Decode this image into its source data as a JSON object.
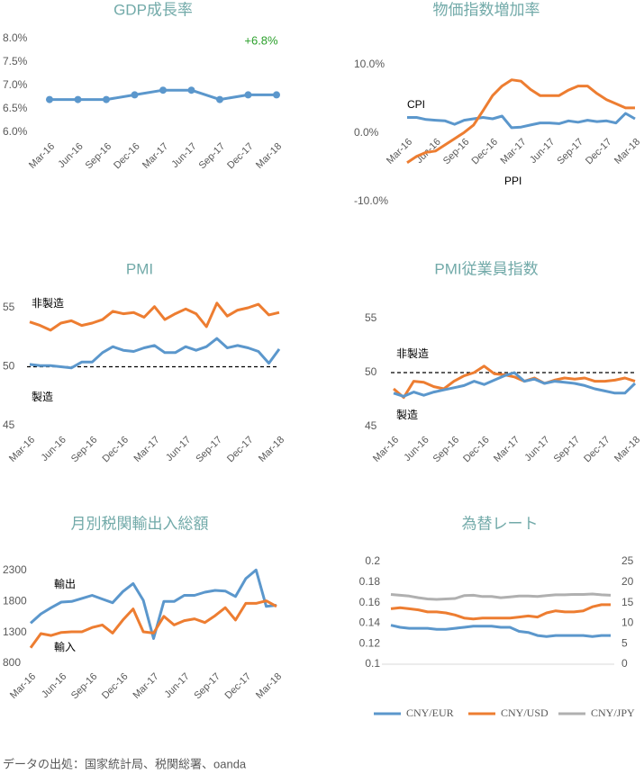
{
  "chart_data": [
    {
      "type": "line",
      "title": "GDP成長率",
      "categories": [
        "Mar-16",
        "Jun-16",
        "Sep-16",
        "Dec-16",
        "Mar-17",
        "Jun-17",
        "Sep-17",
        "Dec-17",
        "Mar-18"
      ],
      "series": [
        {
          "name": null,
          "color": "#5b97cc",
          "values": [
            6.7,
            6.7,
            6.7,
            6.8,
            6.9,
            6.9,
            6.7,
            6.8,
            6.8
          ]
        }
      ],
      "markers": true,
      "annotation": "+6.8%",
      "annotation_color": "#2ca02c",
      "ylim": [
        6.0,
        8.0
      ],
      "yticks": [
        {
          "value": 6.0,
          "label": "6.0%"
        },
        {
          "value": 6.5,
          "label": "6.5%"
        },
        {
          "value": 7.0,
          "label": "7.0%"
        },
        {
          "value": 7.5,
          "label": "7.5%"
        },
        {
          "value": 8.0,
          "label": "8.0%"
        }
      ]
    },
    {
      "type": "line",
      "title": "物価指数増加率",
      "categories": [
        "Mar-16",
        null,
        null,
        "Jun-16",
        null,
        null,
        "Sep-16",
        null,
        null,
        "Dec-16",
        null,
        null,
        "Mar-17",
        null,
        null,
        "Jun-17",
        null,
        null,
        "Sep-17",
        null,
        null,
        "Dec-17",
        null,
        null,
        "Mar-18"
      ],
      "series": [
        {
          "name": "CPI",
          "color": "#5b97cc",
          "values": [
            2.3,
            2.3,
            2.0,
            1.9,
            1.8,
            1.3,
            1.9,
            2.1,
            2.3,
            2.1,
            2.5,
            0.8,
            0.9,
            1.2,
            1.5,
            1.5,
            1.4,
            1.8,
            1.6,
            1.9,
            1.7,
            1.8,
            1.5,
            2.9,
            2.1
          ]
        },
        {
          "name": "PPI",
          "color": "#ed7d31",
          "values": [
            -4.3,
            -3.4,
            -2.8,
            -2.6,
            -1.7,
            -0.8,
            0.1,
            1.2,
            3.3,
            5.5,
            6.9,
            7.8,
            7.6,
            6.4,
            5.5,
            5.5,
            5.5,
            6.3,
            6.9,
            6.9,
            5.8,
            4.9,
            4.3,
            3.7,
            3.7
          ]
        }
      ],
      "ylim": [
        -10,
        10
      ],
      "yticks": [
        {
          "value": -10,
          "label": "-10.0%"
        },
        {
          "value": 0,
          "label": "0.0%"
        },
        {
          "value": 10,
          "label": "10.0%"
        }
      ]
    },
    {
      "type": "line",
      "title": "PMI",
      "categories": [
        "Mar-16",
        null,
        null,
        "Jun-16",
        null,
        null,
        "Sep-16",
        null,
        null,
        "Dec-16",
        null,
        null,
        "Mar-17",
        null,
        null,
        "Jun-17",
        null,
        null,
        "Sep-17",
        null,
        null,
        "Dec-17",
        null,
        null,
        "Mar-18"
      ],
      "series": [
        {
          "name": "非製造",
          "color": "#ed7d31",
          "values": [
            53.8,
            53.5,
            53.1,
            53.7,
            53.9,
            53.5,
            53.7,
            54.0,
            54.7,
            54.5,
            54.6,
            54.2,
            55.1,
            54.0,
            54.5,
            54.9,
            54.5,
            53.4,
            55.4,
            54.3,
            54.8,
            55.0,
            55.3,
            54.4,
            54.6
          ]
        },
        {
          "name": "製造",
          "color": "#5b97cc",
          "values": [
            50.2,
            50.1,
            50.1,
            50.0,
            49.9,
            50.4,
            50.4,
            51.2,
            51.7,
            51.4,
            51.3,
            51.6,
            51.8,
            51.2,
            51.2,
            51.7,
            51.4,
            51.7,
            52.4,
            51.6,
            51.8,
            51.6,
            51.3,
            50.3,
            51.5
          ]
        }
      ],
      "reference_line": 50,
      "ylim": [
        45,
        55
      ],
      "yticks": [
        45,
        50,
        55
      ]
    },
    {
      "type": "line",
      "title": "PMI従業員指数",
      "categories": [
        "Mar-16",
        null,
        null,
        "Jun-16",
        null,
        null,
        "Sep-16",
        null,
        null,
        "Dec-16",
        null,
        null,
        "Mar-17",
        null,
        null,
        "Jun-17",
        null,
        null,
        "Sep-17",
        null,
        null,
        "Dec-17",
        null,
        null,
        "Mar-18"
      ],
      "series": [
        {
          "name": "非製造",
          "color": "#ed7d31",
          "values": [
            48.5,
            47.7,
            49.2,
            49.1,
            48.7,
            48.5,
            49.2,
            49.7,
            50.0,
            50.6,
            49.9,
            49.8,
            49.6,
            49.2,
            49.5,
            49.0,
            49.3,
            49.5,
            49.4,
            49.5,
            49.2,
            49.2,
            49.3,
            49.5,
            49.2
          ]
        },
        {
          "name": "製造",
          "color": "#5b97cc",
          "values": [
            48.1,
            47.8,
            48.2,
            47.9,
            48.2,
            48.4,
            48.6,
            48.8,
            49.2,
            48.9,
            49.3,
            49.7,
            50.0,
            49.2,
            49.4,
            49.0,
            49.2,
            49.1,
            49.0,
            48.8,
            48.5,
            48.3,
            48.1,
            48.1,
            49.0
          ]
        }
      ],
      "reference_line": 50,
      "ylim": [
        45,
        55
      ],
      "yticks": [
        45,
        50,
        55
      ]
    },
    {
      "type": "line",
      "title": "月別税関輸出入総額",
      "categories": [
        "Mar-16",
        null,
        null,
        "Jun-16",
        null,
        null,
        "Sep-16",
        null,
        null,
        "Dec-16",
        null,
        null,
        "Mar-17",
        null,
        null,
        "Jun-17",
        null,
        null,
        "Sep-17",
        null,
        null,
        "Dec-17",
        null,
        null,
        "Mar-18"
      ],
      "series": [
        {
          "name": "輸出",
          "color": "#5b97cc",
          "values": [
            1450,
            1600,
            1700,
            1790,
            1800,
            1850,
            1900,
            1840,
            1780,
            1960,
            2090,
            1820,
            1200,
            1800,
            1800,
            1900,
            1900,
            1950,
            1980,
            1970,
            1880,
            2170,
            2310,
            1720,
            1740
          ]
        },
        {
          "name": "輸入",
          "color": "#ed7d31",
          "values": [
            1050,
            1280,
            1250,
            1300,
            1310,
            1310,
            1380,
            1420,
            1290,
            1500,
            1680,
            1310,
            1290,
            1560,
            1420,
            1490,
            1520,
            1460,
            1570,
            1700,
            1500,
            1770,
            1770,
            1810,
            1720
          ]
        }
      ],
      "ylim": [
        800,
        2300
      ],
      "yticks": [
        800,
        1300,
        1800,
        2300
      ]
    },
    {
      "type": "line",
      "title": "為替レート",
      "series": [
        {
          "name": "CNY/EUR",
          "color": "#5b97cc",
          "values": [
            0.138,
            0.136,
            0.135,
            0.135,
            0.135,
            0.134,
            0.134,
            0.135,
            0.136,
            0.137,
            0.137,
            0.137,
            0.136,
            0.136,
            0.132,
            0.131,
            0.128,
            0.127,
            0.128,
            0.128,
            0.128,
            0.128,
            0.127,
            0.128,
            0.128
          ]
        },
        {
          "name": "CNY/USD",
          "color": "#ed7d31",
          "values": [
            0.154,
            0.155,
            0.154,
            0.153,
            0.151,
            0.151,
            0.15,
            0.148,
            0.145,
            0.144,
            0.145,
            0.145,
            0.145,
            0.145,
            0.146,
            0.147,
            0.146,
            0.15,
            0.152,
            0.151,
            0.151,
            0.152,
            0.156,
            0.158,
            0.158
          ]
        },
        {
          "name": "CNY/JPY",
          "color": "#b0b0b0",
          "axis": "y2",
          "values": [
            17.0,
            16.8,
            16.6,
            16.2,
            15.9,
            15.8,
            15.9,
            16.0,
            16.7,
            16.8,
            16.5,
            16.5,
            16.2,
            16.4,
            16.6,
            16.6,
            16.5,
            16.7,
            16.9,
            16.9,
            17.0,
            17.0,
            17.1,
            16.9,
            16.8
          ]
        }
      ],
      "legend": "bottom",
      "ylim": [
        0.1,
        0.2
      ],
      "yticks": [
        0.1,
        0.12,
        0.14,
        0.16,
        0.18,
        0.2
      ],
      "y2lim": [
        0,
        25
      ],
      "y2ticks": [
        0,
        5,
        10,
        15,
        20,
        25
      ]
    }
  ],
  "source": "データの出処：国家統計局、税関総署、oanda"
}
